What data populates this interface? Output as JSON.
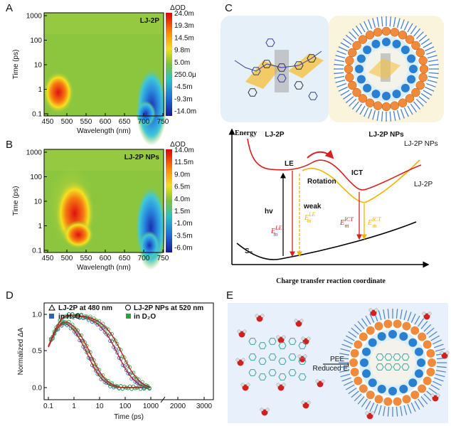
{
  "panels": {
    "a": {
      "label": "A",
      "title": "LJ-2P",
      "y_label": "Time (ps)",
      "x_label": "Wavelength (nm)",
      "y_ticks": [
        "1000",
        "100",
        "10",
        "1",
        "0.1"
      ],
      "x_ticks": [
        "450",
        "500",
        "550",
        "600",
        "650",
        "700",
        "750"
      ],
      "colorbar_title": "ΔOD",
      "colorbar_ticks": [
        "24.0m",
        "19.3m",
        "14.5m",
        "9.8m",
        "5.0m",
        "250.0μ",
        "-4.5m",
        "-9.3m",
        "-14.0m"
      ]
    },
    "b": {
      "label": "B",
      "title": "LJ-2P NPs",
      "y_label": "Time (ps)",
      "x_label": "Wavelength (nm)",
      "y_ticks": [
        "1000",
        "100",
        "10",
        "1",
        "0.1"
      ],
      "x_ticks": [
        "450",
        "500",
        "550",
        "600",
        "650",
        "700",
        "750"
      ],
      "colorbar_title": "ΔOD",
      "colorbar_ticks": [
        "14.0m",
        "11.5m",
        "9.0m",
        "6.5m",
        "4.0m",
        "1.5m",
        "-1.0m",
        "-3.5m",
        "-6.0m"
      ]
    },
    "c": {
      "label": "C",
      "molecule_label": "LJ-2P",
      "np_label": "LJ-2P NPs",
      "y_label": "Energy",
      "x_label": "Charge transfer reaction coordinate",
      "curve_np": "LJ-2P NPs",
      "curve_mol": "LJ-2P",
      "le": "LE",
      "ict": "ICT",
      "rotation": "Rotation",
      "hv": "hv",
      "s0": "S₀",
      "weak": "weak",
      "em_le": {
        "symbol": "E",
        "sub": "m",
        "sup": "LE"
      },
      "em_ict": {
        "symbol": "E",
        "sub": "m",
        "sup": "ICT"
      }
    },
    "d": {
      "label": "D",
      "y_label": "Normalized ΔA",
      "x_label": "Time (ps)",
      "y_ticks": [
        "0.0",
        "0.5",
        "1.0"
      ],
      "x_ticks": [
        "0.1",
        "1",
        "10",
        "100",
        "1000",
        "2000",
        "3000"
      ],
      "legend": [
        "LJ-2P at 480 nm",
        "LJ-2P NPs at 520 nm",
        "in H₂O",
        "in D₂O"
      ]
    },
    "e": {
      "label": "E",
      "arrow_top": "PEE",
      "arrow_bottom": "Reduced ESPT"
    }
  }
}
